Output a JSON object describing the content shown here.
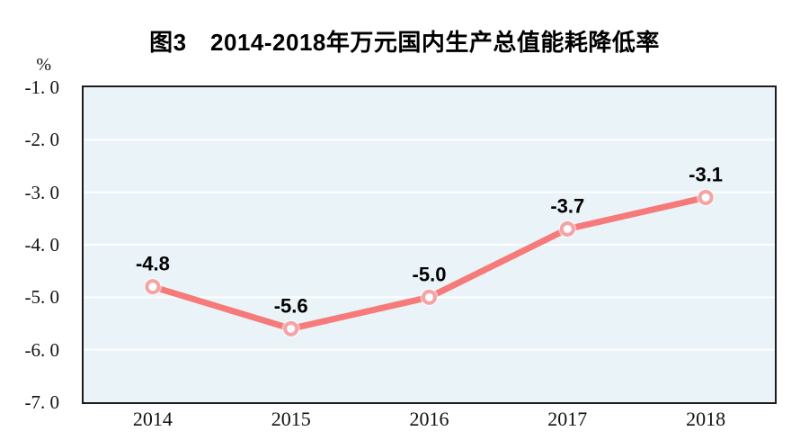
{
  "title": "图3　2014-2018年万元国内生产总值能耗降低率",
  "colors": {
    "line": "#f67a7a",
    "marker_ring": "#f5a3a5",
    "marker_fill": "#ffffff",
    "plot_bg": "#eaf3f7",
    "grid": "#ffffff",
    "border": "#1c1c1c",
    "text": "#000000"
  },
  "chart_data": {
    "type": "line",
    "title": "图3　2014-2018年万元国内生产总值能耗降低率",
    "ylabel": "%",
    "xlabel": "",
    "categories": [
      "2014",
      "2015",
      "2016",
      "2017",
      "2018"
    ],
    "values": [
      -4.8,
      -5.6,
      -5.0,
      -3.7,
      -3.1
    ],
    "point_labels": [
      "-4.8",
      "-5.6",
      "-5.0",
      "-3.7",
      "-3.1"
    ],
    "ylim": [
      -7.0,
      -1.0
    ],
    "y_ticks": [
      {
        "value": -1.0,
        "label": "-1. 0"
      },
      {
        "value": -2.0,
        "label": "-2. 0"
      },
      {
        "value": -3.0,
        "label": "-3. 0"
      },
      {
        "value": -4.0,
        "label": "-4. 0"
      },
      {
        "value": -5.0,
        "label": "-5. 0"
      },
      {
        "value": -6.0,
        "label": "-6. 0"
      },
      {
        "value": -7.0,
        "label": "-7. 0"
      }
    ],
    "grid": "horizontal",
    "legend": "none"
  }
}
